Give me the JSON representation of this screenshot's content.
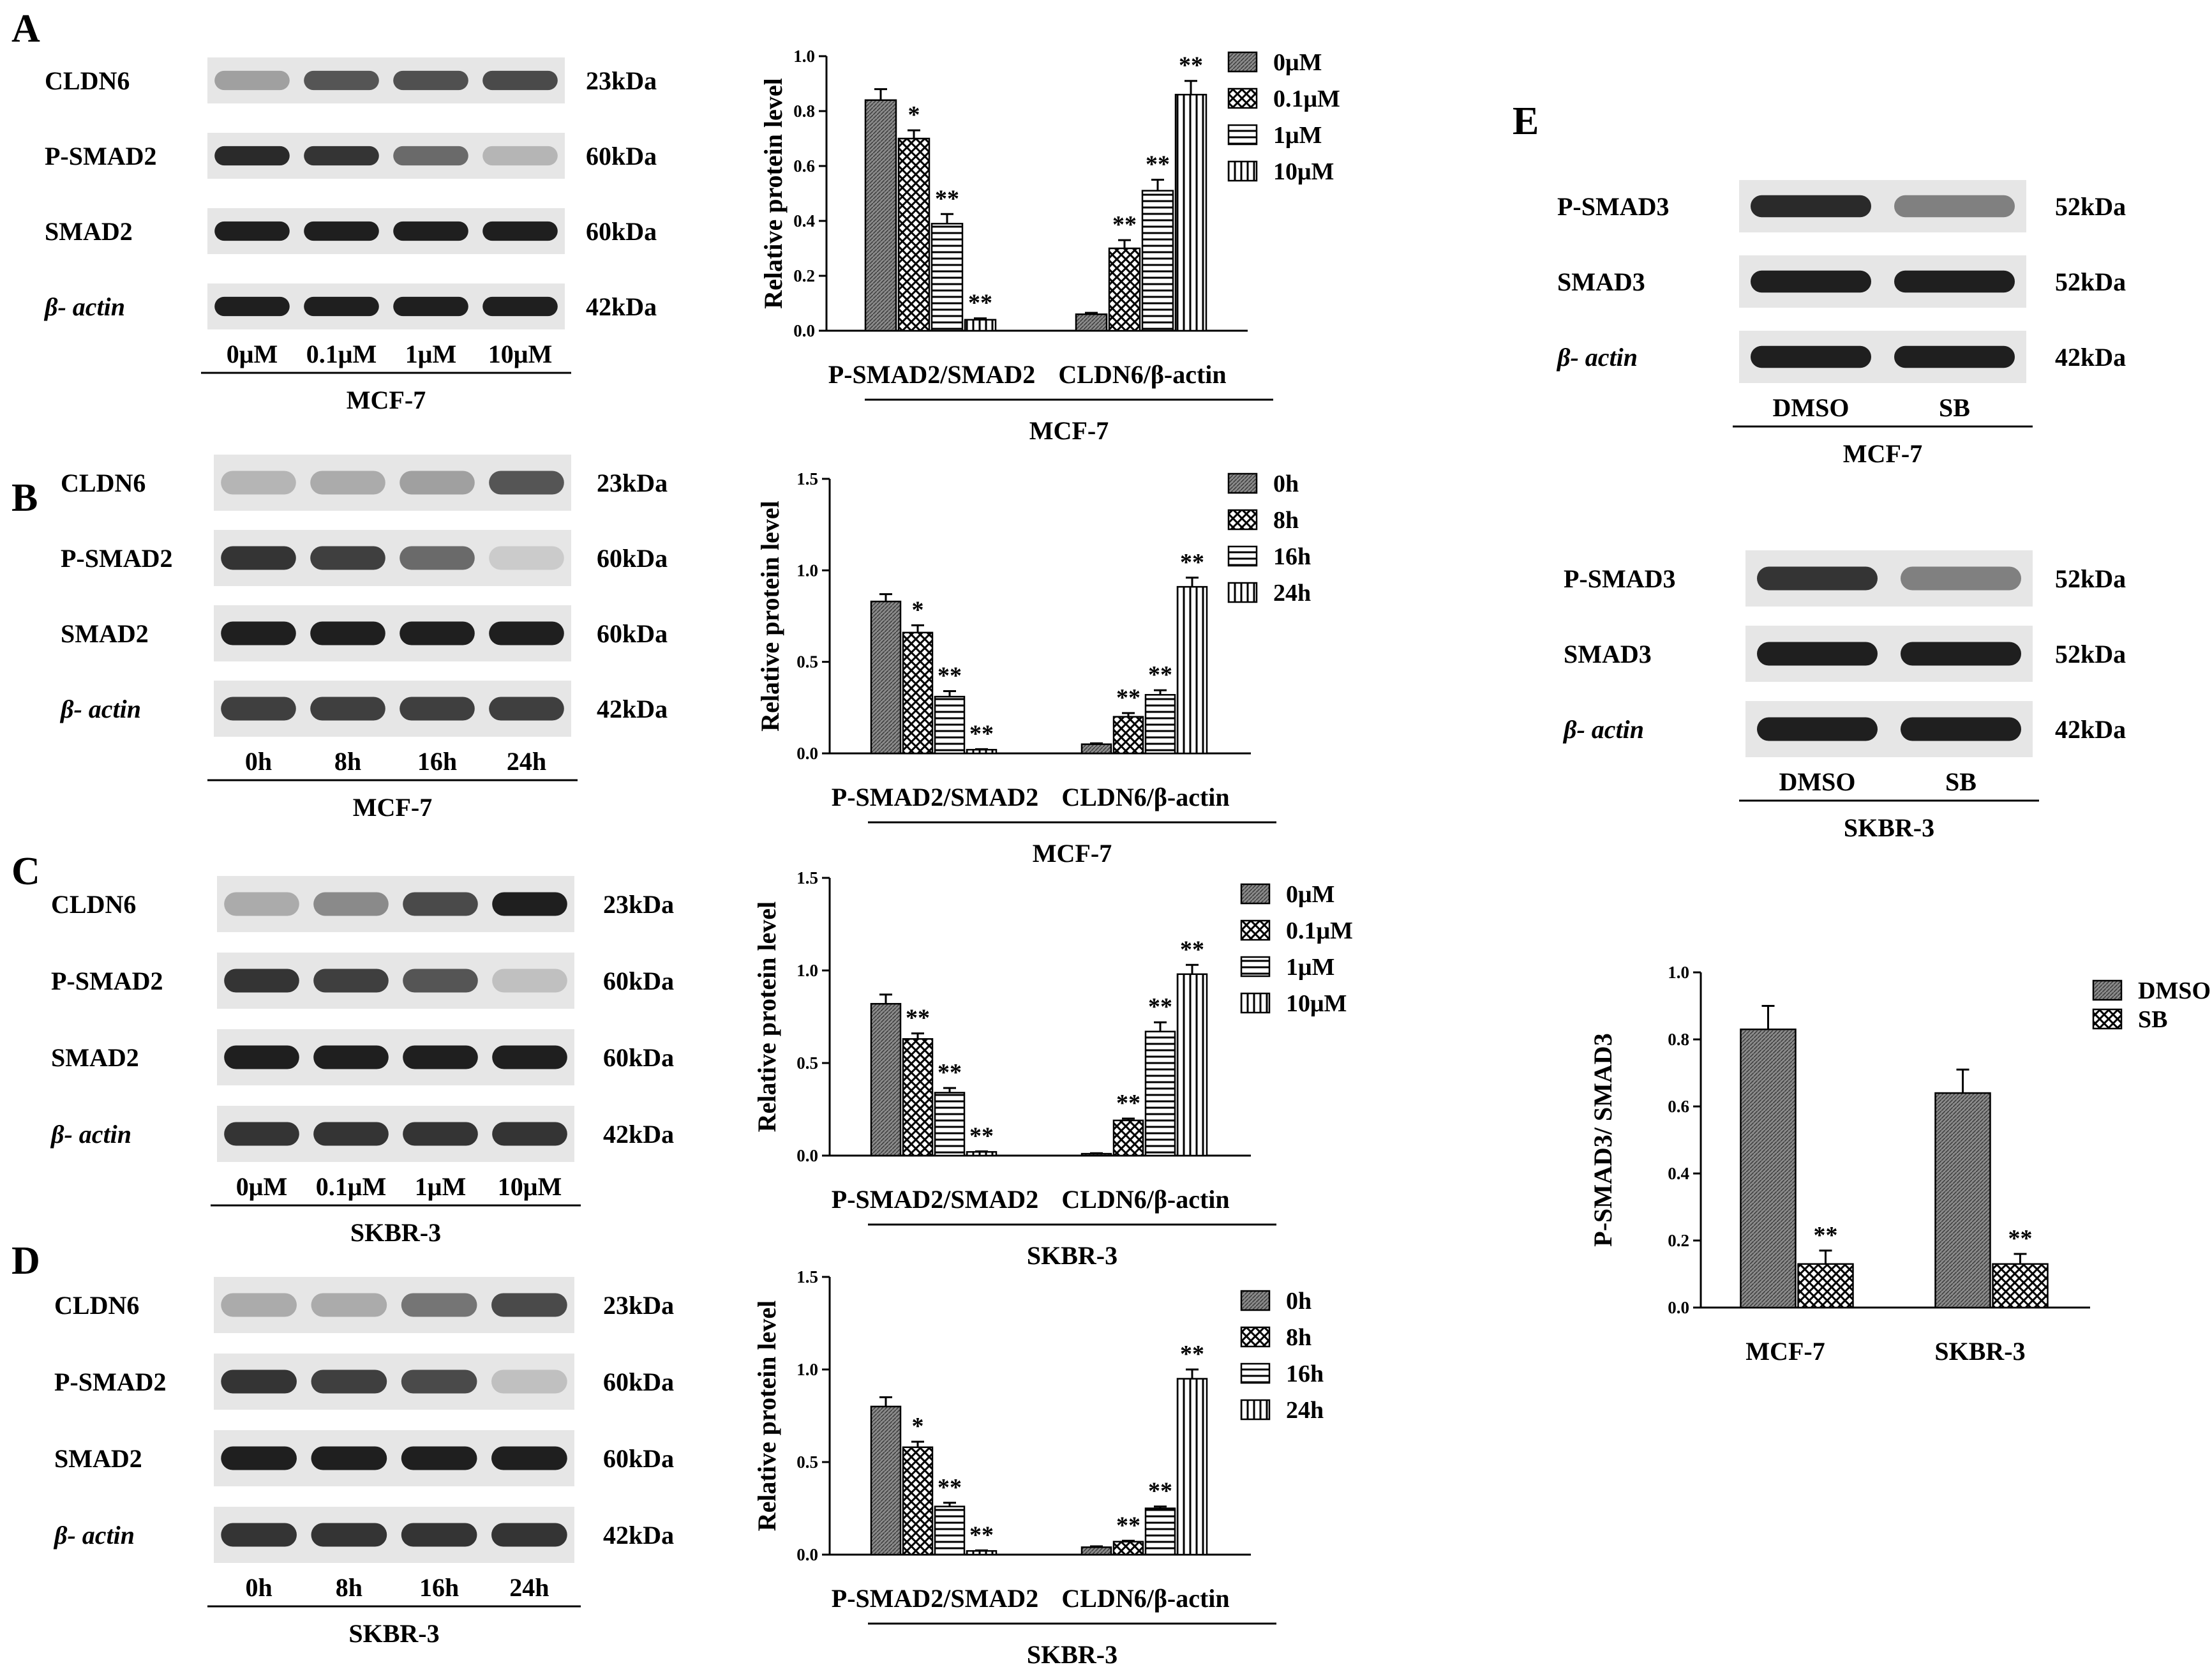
{
  "patterns": {
    "fill0": "#7a7a7a",
    "fill1_bg": "#ffffff",
    "ink": "#000000"
  },
  "panels": {
    "A": {
      "letter": "A",
      "blot": {
        "rows": [
          {
            "label": "CLDN6",
            "italic": false,
            "size": "23kDa",
            "intensity": [
              0.35,
              0.7,
              0.72,
              0.75
            ]
          },
          {
            "label": "P-SMAD2",
            "italic": false,
            "size": "60kDa",
            "intensity": [
              0.9,
              0.85,
              0.6,
              0.25
            ]
          },
          {
            "label": "SMAD2",
            "italic": false,
            "size": "60kDa",
            "intensity": [
              0.95,
              0.95,
              0.95,
              0.95
            ]
          },
          {
            "label": "β- actin",
            "italic": true,
            "size": "42kDa",
            "intensity": [
              0.95,
              0.95,
              0.95,
              0.95
            ]
          }
        ],
        "lanes": [
          "0μM",
          "0.1μM",
          "1μM",
          "10μM"
        ],
        "cell": "MCF-7"
      }
    },
    "B": {
      "letter": "B",
      "blot": {
        "rows": [
          {
            "label": "CLDN6",
            "italic": false,
            "size": "23kDa",
            "intensity": [
              0.25,
              0.3,
              0.35,
              0.7
            ]
          },
          {
            "label": "P-SMAD2",
            "italic": false,
            "size": "60kDa",
            "intensity": [
              0.85,
              0.8,
              0.6,
              0.15
            ]
          },
          {
            "label": "SMAD2",
            "italic": false,
            "size": "60kDa",
            "intensity": [
              0.95,
              0.95,
              0.95,
              0.95
            ]
          },
          {
            "label": "β- actin",
            "italic": true,
            "size": "42kDa",
            "intensity": [
              0.8,
              0.8,
              0.8,
              0.8
            ]
          }
        ],
        "lanes": [
          "0h",
          "8h",
          "16h",
          "24h"
        ],
        "cell": "MCF-7"
      }
    },
    "C": {
      "letter": "C",
      "blot": {
        "rows": [
          {
            "label": "CLDN6",
            "italic": false,
            "size": "23kDa",
            "intensity": [
              0.3,
              0.45,
              0.75,
              0.95
            ]
          },
          {
            "label": "P-SMAD2",
            "italic": false,
            "size": "60kDa",
            "intensity": [
              0.85,
              0.8,
              0.7,
              0.2
            ]
          },
          {
            "label": "SMAD2",
            "italic": false,
            "size": "60kDa",
            "intensity": [
              0.95,
              0.95,
              0.95,
              0.95
            ]
          },
          {
            "label": "β- actin",
            "italic": true,
            "size": "42kDa",
            "intensity": [
              0.85,
              0.85,
              0.85,
              0.85
            ]
          }
        ],
        "lanes": [
          "0μM",
          "0.1μM",
          "1μM",
          "10μM"
        ],
        "cell": "SKBR-3"
      }
    },
    "D": {
      "letter": "D",
      "blot": {
        "rows": [
          {
            "label": "CLDN6",
            "italic": false,
            "size": "23kDa",
            "intensity": [
              0.3,
              0.3,
              0.55,
              0.75
            ]
          },
          {
            "label": "P-SMAD2",
            "italic": false,
            "size": "60kDa",
            "intensity": [
              0.85,
              0.8,
              0.75,
              0.2
            ]
          },
          {
            "label": "SMAD2",
            "italic": false,
            "size": "60kDa",
            "intensity": [
              0.95,
              0.95,
              0.95,
              0.95
            ]
          },
          {
            "label": "β- actin",
            "italic": true,
            "size": "42kDa",
            "intensity": [
              0.85,
              0.85,
              0.85,
              0.85
            ]
          }
        ],
        "lanes": [
          "0h",
          "8h",
          "16h",
          "24h"
        ],
        "cell": "SKBR-3"
      }
    },
    "E": {
      "letter": "E",
      "blots": [
        {
          "rows": [
            {
              "label": "P-SMAD3",
              "italic": false,
              "size": "52kDa",
              "intensity": [
                0.9,
                0.5
              ]
            },
            {
              "label": "SMAD3",
              "italic": false,
              "size": "52kDa",
              "intensity": [
                0.95,
                0.95
              ]
            },
            {
              "label": "β- actin",
              "italic": true,
              "size": "42kDa",
              "intensity": [
                0.95,
                0.95
              ]
            }
          ],
          "lanes": [
            "DMSO",
            "SB"
          ],
          "cell": "MCF-7"
        },
        {
          "rows": [
            {
              "label": "P-SMAD3",
              "italic": false,
              "size": "52kDa",
              "intensity": [
                0.85,
                0.5
              ]
            },
            {
              "label": "SMAD3",
              "italic": false,
              "size": "52kDa",
              "intensity": [
                0.95,
                0.95
              ]
            },
            {
              "label": "β- actin",
              "italic": true,
              "size": "42kDa",
              "intensity": [
                0.95,
                0.95
              ]
            }
          ],
          "lanes": [
            "DMSO",
            "SB"
          ],
          "cell": "SKBR-3"
        }
      ]
    }
  },
  "chart_data": [
    {
      "panel": "A",
      "type": "bar",
      "categories": [
        "P-SMAD2/SMAD2",
        "CLDN6/β-actin"
      ],
      "series": [
        {
          "name": "0μM",
          "values": [
            0.84,
            0.06
          ],
          "errors": [
            0.04,
            0.005
          ],
          "sig": [
            "",
            ""
          ]
        },
        {
          "name": "0.1μM",
          "values": [
            0.7,
            0.3
          ],
          "errors": [
            0.03,
            0.03
          ],
          "sig": [
            "*",
            "**"
          ]
        },
        {
          "name": "1μM",
          "values": [
            0.39,
            0.51
          ],
          "errors": [
            0.035,
            0.04
          ],
          "sig": [
            "**",
            "**"
          ]
        },
        {
          "name": "10μM",
          "values": [
            0.04,
            0.86
          ],
          "errors": [
            0.005,
            0.05
          ],
          "sig": [
            "**",
            "**"
          ]
        }
      ],
      "ylabel": "Relative protein level",
      "xlabel": "MCF-7",
      "ylim": [
        0,
        1.0
      ],
      "yticks": [
        "0.0",
        "0.2",
        "0.4",
        "0.6",
        "0.8",
        "1.0"
      ],
      "legend": "top-right"
    },
    {
      "panel": "B",
      "type": "bar",
      "categories": [
        "P-SMAD2/SMAD2",
        "CLDN6/β-actin"
      ],
      "series": [
        {
          "name": "0h",
          "values": [
            0.83,
            0.05
          ],
          "errors": [
            0.04,
            0.005
          ],
          "sig": [
            "",
            ""
          ]
        },
        {
          "name": "8h",
          "values": [
            0.66,
            0.2
          ],
          "errors": [
            0.04,
            0.02
          ],
          "sig": [
            "*",
            "**"
          ]
        },
        {
          "name": "16h",
          "values": [
            0.31,
            0.32
          ],
          "errors": [
            0.03,
            0.025
          ],
          "sig": [
            "**",
            "**"
          ]
        },
        {
          "name": "24h",
          "values": [
            0.02,
            0.91
          ],
          "errors": [
            0.003,
            0.05
          ],
          "sig": [
            "**",
            "**"
          ]
        }
      ],
      "ylabel": "Relative protein level",
      "xlabel": "MCF-7",
      "ylim": [
        0,
        1.5
      ],
      "yticks": [
        "0.0",
        "0.5",
        "1.0",
        "1.5"
      ],
      "legend": "top-right"
    },
    {
      "panel": "C",
      "type": "bar",
      "categories": [
        "P-SMAD2/SMAD2",
        "CLDN6/β-actin"
      ],
      "series": [
        {
          "name": "0μM",
          "values": [
            0.82,
            0.01
          ],
          "errors": [
            0.05,
            0.003
          ],
          "sig": [
            "",
            ""
          ]
        },
        {
          "name": "0.1μM",
          "values": [
            0.63,
            0.19
          ],
          "errors": [
            0.03,
            0.01
          ],
          "sig": [
            "**",
            "**"
          ]
        },
        {
          "name": "1μM",
          "values": [
            0.34,
            0.67
          ],
          "errors": [
            0.025,
            0.05
          ],
          "sig": [
            "**",
            "**"
          ]
        },
        {
          "name": "10μM",
          "values": [
            0.02,
            0.98
          ],
          "errors": [
            0.003,
            0.05
          ],
          "sig": [
            "**",
            "**"
          ]
        }
      ],
      "ylabel": "Relative protein level",
      "xlabel": "SKBR-3",
      "ylim": [
        0,
        1.5
      ],
      "yticks": [
        "0.0",
        "0.5",
        "1.0",
        "1.5"
      ],
      "legend": "top-right"
    },
    {
      "panel": "D",
      "type": "bar",
      "categories": [
        "P-SMAD2/SMAD2",
        "CLDN6/β-actin"
      ],
      "series": [
        {
          "name": "0h",
          "values": [
            0.8,
            0.04
          ],
          "errors": [
            0.05,
            0.005
          ],
          "sig": [
            "",
            ""
          ]
        },
        {
          "name": "8h",
          "values": [
            0.58,
            0.07
          ],
          "errors": [
            0.03,
            0.005
          ],
          "sig": [
            "*",
            "**"
          ]
        },
        {
          "name": "16h",
          "values": [
            0.26,
            0.25
          ],
          "errors": [
            0.02,
            0.01
          ],
          "sig": [
            "**",
            "**"
          ]
        },
        {
          "name": "24h",
          "values": [
            0.02,
            0.95
          ],
          "errors": [
            0.003,
            0.05
          ],
          "sig": [
            "**",
            "**"
          ]
        }
      ],
      "ylabel": "Relative protein level",
      "xlabel": "SKBR-3",
      "ylim": [
        0,
        1.5
      ],
      "yticks": [
        "0.0",
        "0.5",
        "1.0",
        "1.5"
      ],
      "legend": "top-right"
    },
    {
      "panel": "E",
      "type": "bar",
      "categories": [
        "MCF-7",
        "SKBR-3"
      ],
      "series": [
        {
          "name": "DMSO",
          "values": [
            0.83,
            0.64
          ],
          "errors": [
            0.07,
            0.07
          ],
          "sig": [
            "",
            ""
          ]
        },
        {
          "name": "SB",
          "values": [
            0.13,
            0.13
          ],
          "errors": [
            0.04,
            0.03
          ],
          "sig": [
            "**",
            "**"
          ]
        }
      ],
      "ylabel": "P-SMAD3/ SMAD3",
      "xlabel": "",
      "ylim": [
        0,
        1.0
      ],
      "yticks": [
        "0.0",
        "0.2",
        "0.4",
        "0.6",
        "0.8",
        "1.0"
      ],
      "legend": "top-right"
    }
  ]
}
